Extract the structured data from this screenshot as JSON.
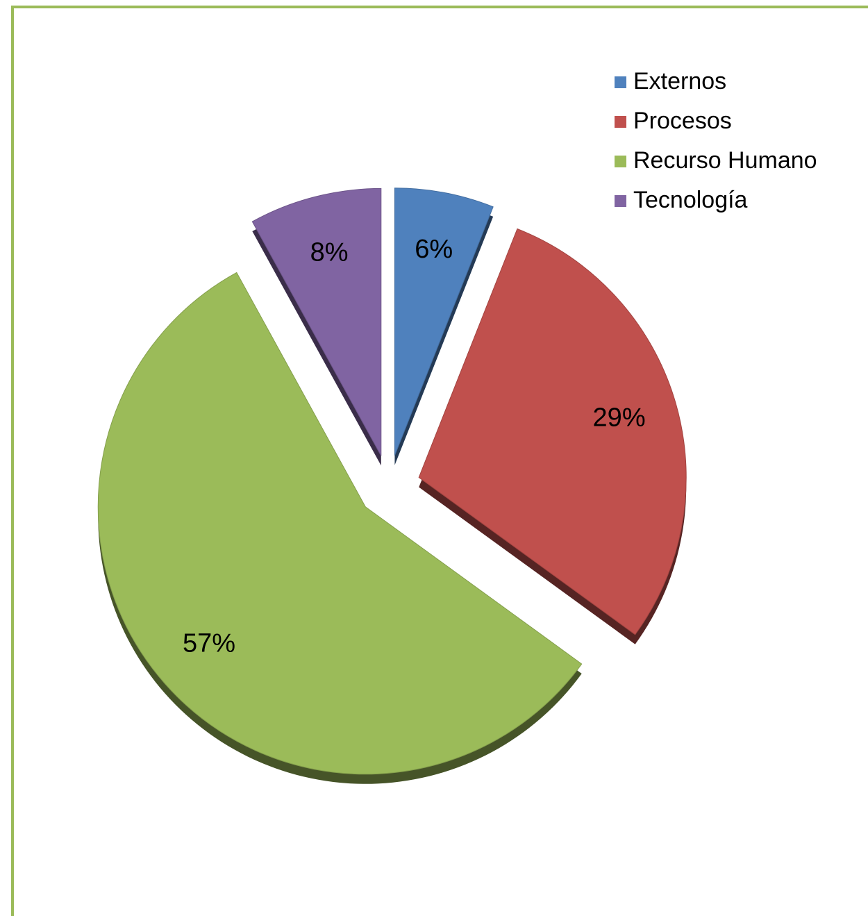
{
  "chart_data": {
    "type": "pie",
    "categories": [
      "Externos",
      "Procesos",
      "Recurso Humano",
      "Tecnología"
    ],
    "values": [
      6,
      29,
      57,
      8
    ],
    "value_labels": [
      "6%",
      "29%",
      "57%",
      "8%"
    ],
    "colors": [
      "#4f81bd",
      "#c0504d",
      "#9bbb59",
      "#8064a2"
    ],
    "legend": "top-right"
  }
}
